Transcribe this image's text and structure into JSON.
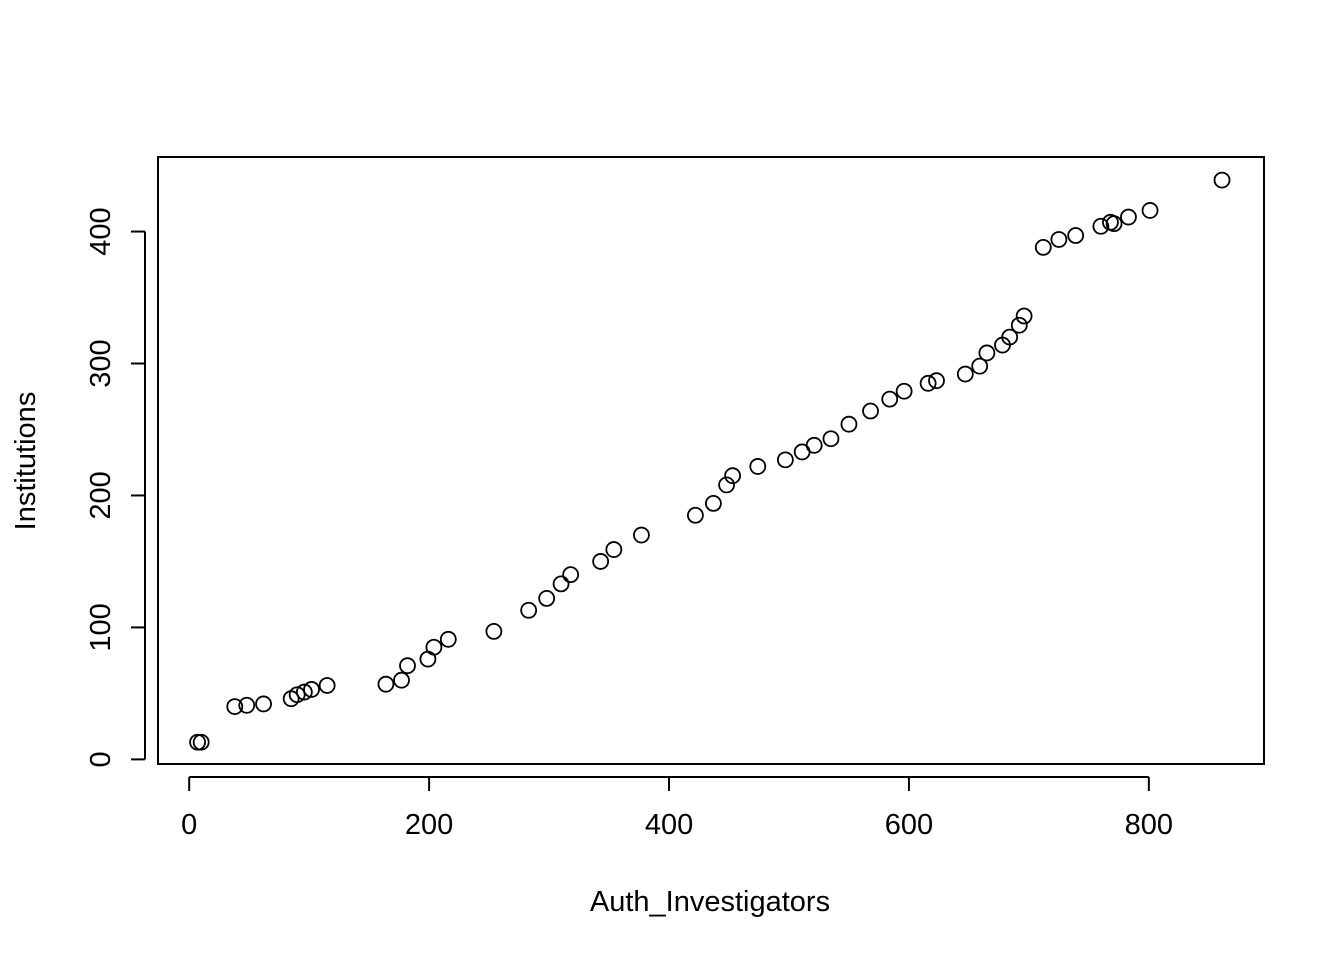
{
  "chart_data": {
    "type": "scatter",
    "title": "",
    "xlabel": "Auth_Investigators",
    "ylabel": "Institutions",
    "xlim": [
      -26,
      896
    ],
    "ylim": [
      -3.5,
      456.5
    ],
    "xticks": [
      0,
      200,
      400,
      600,
      800
    ],
    "yticks": [
      0,
      100,
      200,
      300,
      400
    ],
    "grid": false,
    "marker": "open-circle",
    "series": [
      {
        "points": [
          [
            7,
            13
          ],
          [
            10,
            13
          ],
          [
            38,
            40
          ],
          [
            48,
            41
          ],
          [
            62,
            42
          ],
          [
            85,
            46
          ],
          [
            90,
            49
          ],
          [
            96,
            51
          ],
          [
            102,
            53
          ],
          [
            115,
            56
          ],
          [
            164,
            57
          ],
          [
            177,
            60
          ],
          [
            182,
            71
          ],
          [
            199,
            76
          ],
          [
            204,
            85
          ],
          [
            216,
            91
          ],
          [
            254,
            97
          ],
          [
            283,
            113
          ],
          [
            298,
            122
          ],
          [
            310,
            133
          ],
          [
            318,
            140
          ],
          [
            343,
            150
          ],
          [
            354,
            159
          ],
          [
            377,
            170
          ],
          [
            422,
            185
          ],
          [
            437,
            194
          ],
          [
            448,
            208
          ],
          [
            453,
            215
          ],
          [
            474,
            222
          ],
          [
            497,
            227
          ],
          [
            511,
            233
          ],
          [
            521,
            238
          ],
          [
            535,
            243
          ],
          [
            550,
            254
          ],
          [
            568,
            264
          ],
          [
            584,
            273
          ],
          [
            596,
            279
          ],
          [
            616,
            285
          ],
          [
            623,
            287
          ],
          [
            647,
            292
          ],
          [
            659,
            298
          ],
          [
            665,
            308
          ],
          [
            678,
            314
          ],
          [
            684,
            320
          ],
          [
            692,
            329
          ],
          [
            696,
            336
          ],
          [
            712,
            388
          ],
          [
            725,
            394
          ],
          [
            739,
            397
          ],
          [
            760,
            404
          ],
          [
            768,
            407
          ],
          [
            771,
            406
          ],
          [
            783,
            411
          ],
          [
            801,
            416
          ],
          [
            861,
            439
          ]
        ]
      }
    ]
  }
}
